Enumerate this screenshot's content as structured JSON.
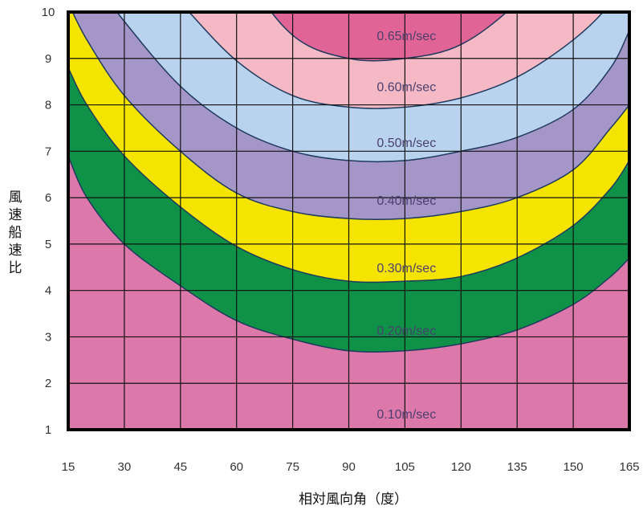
{
  "chart_data": {
    "type": "area",
    "title": "",
    "xlabel": "相対風向角（度）",
    "ylabel": "風速船速比",
    "x_ticks": [
      15,
      30,
      45,
      60,
      75,
      90,
      105,
      120,
      135,
      150,
      165
    ],
    "y_ticks": [
      1,
      2,
      3,
      4,
      5,
      6,
      7,
      8,
      9,
      10
    ],
    "xlim": [
      15,
      165
    ],
    "ylim": [
      1,
      10
    ],
    "grid": true,
    "x": [
      15,
      20,
      30,
      45,
      60,
      75,
      90,
      105,
      120,
      135,
      150,
      160,
      165
    ],
    "contours": [
      {
        "label": "0.10m/sec",
        "fill": "#dc78aa",
        "y": null
      },
      {
        "label": "0.20m/sec",
        "fill": "#0f9148",
        "y": [
          6.9,
          6.0,
          5.0,
          4.1,
          3.35,
          2.95,
          2.7,
          2.7,
          2.85,
          3.15,
          3.7,
          4.3,
          4.7
        ]
      },
      {
        "label": "0.30m/sec",
        "fill": "#f5e400",
        "y": [
          8.8,
          8.0,
          6.9,
          5.8,
          4.95,
          4.45,
          4.2,
          4.2,
          4.3,
          4.7,
          5.4,
          6.2,
          6.8
        ]
      },
      {
        "label": "0.40m/sec",
        "fill": "#a596c8",
        "y": [
          10.2,
          9.4,
          8.2,
          7.0,
          6.1,
          5.7,
          5.55,
          5.55,
          5.7,
          6.0,
          6.6,
          7.5,
          8.0
        ]
      },
      {
        "label": "0.50m/sec",
        "fill": "#b9d3ee",
        "y": [
          11.8,
          10.9,
          9.8,
          8.4,
          7.5,
          7.0,
          6.8,
          6.8,
          7.0,
          7.3,
          7.9,
          8.8,
          9.6
        ]
      },
      {
        "label": "0.60m/sec",
        "fill": "#f4b9c4",
        "y": [
          13.5,
          12.5,
          11.5,
          10.2,
          8.95,
          8.2,
          7.95,
          7.95,
          8.15,
          8.6,
          9.4,
          10.2,
          11.0
        ]
      },
      {
        "label": "0.65m/sec",
        "fill": "#e06496",
        "y": [
          15.5,
          14.5,
          13.5,
          12.5,
          11.0,
          9.5,
          9.0,
          9.0,
          9.3,
          10.2,
          11.5,
          12.8,
          14.0
        ]
      }
    ],
    "label_x": 105,
    "label_y": [
      1.35,
      3.15,
      4.5,
      5.95,
      7.2,
      8.4,
      9.5
    ]
  }
}
